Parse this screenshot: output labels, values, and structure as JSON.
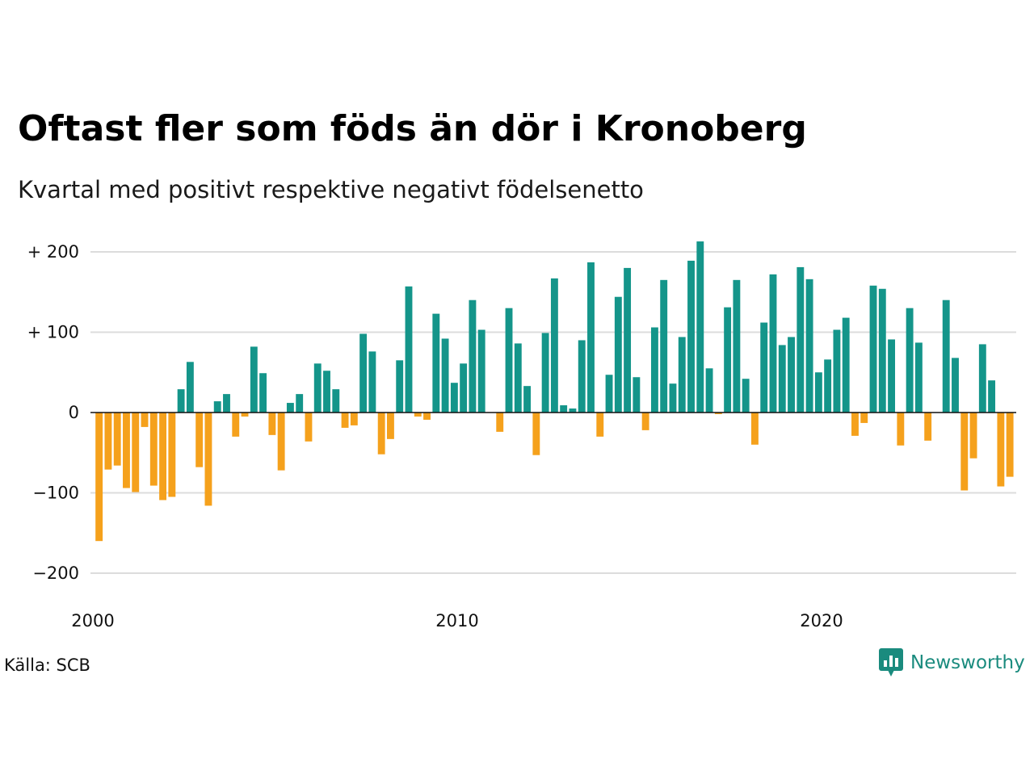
{
  "title": "Oftast fler som föds än dör i Kronoberg",
  "subtitle": "Kvartal med positivt respektive negativt födelsenetto",
  "source": "Källa: SCB",
  "brand": {
    "name": "Newsworthy",
    "icon": "bar-chart-speech-bubble-icon",
    "color": "#1a8b7e"
  },
  "colors": {
    "positive": "#14958a",
    "negative": "#f5a11c"
  },
  "chart_data": {
    "type": "bar",
    "title": "Oftast fler som föds än dör i Kronoberg",
    "subtitle": "Kvartal med positivt respektive negativt födelsenetto",
    "xlabel": "",
    "ylabel": "",
    "ylim": [
      -220,
      220
    ],
    "xlim": [
      2000,
      2025.5
    ],
    "y_ticks": [
      {
        "value": 200,
        "label": "+ 200"
      },
      {
        "value": 100,
        "label": "+ 100"
      },
      {
        "value": 0,
        "label": "0"
      },
      {
        "value": -100,
        "label": "−100"
      },
      {
        "value": -200,
        "label": "−200"
      }
    ],
    "x_ticks": [
      {
        "value": 2000,
        "label": "2000"
      },
      {
        "value": 2010,
        "label": "2010"
      },
      {
        "value": 2020,
        "label": "2020"
      }
    ],
    "grid": true,
    "series_start": "2000 Q1",
    "quarters_per_year": 4,
    "values": [
      -160,
      -71,
      -66,
      -94,
      -99,
      -18,
      -91,
      -109,
      -105,
      29,
      63,
      -68,
      -116,
      14,
      23,
      -30,
      -5,
      82,
      49,
      -28,
      -72,
      12,
      23,
      -36,
      61,
      52,
      29,
      -19,
      -16,
      98,
      76,
      -52,
      -33,
      65,
      157,
      -5,
      -9,
      123,
      92,
      37,
      61,
      140,
      103,
      0,
      -24,
      130,
      86,
      33,
      -53,
      99,
      167,
      9,
      5,
      90,
      187,
      -30,
      47,
      144,
      180,
      44,
      -22,
      106,
      165,
      36,
      94,
      189,
      213,
      55,
      -2,
      131,
      165,
      42,
      -40,
      112,
      172,
      84,
      94,
      181,
      166,
      50,
      66,
      103,
      118,
      -29,
      -13,
      158,
      154,
      91,
      -41,
      130,
      87,
      -35,
      0,
      140,
      68,
      -97,
      -57,
      85,
      40,
      -92,
      -80
    ]
  }
}
